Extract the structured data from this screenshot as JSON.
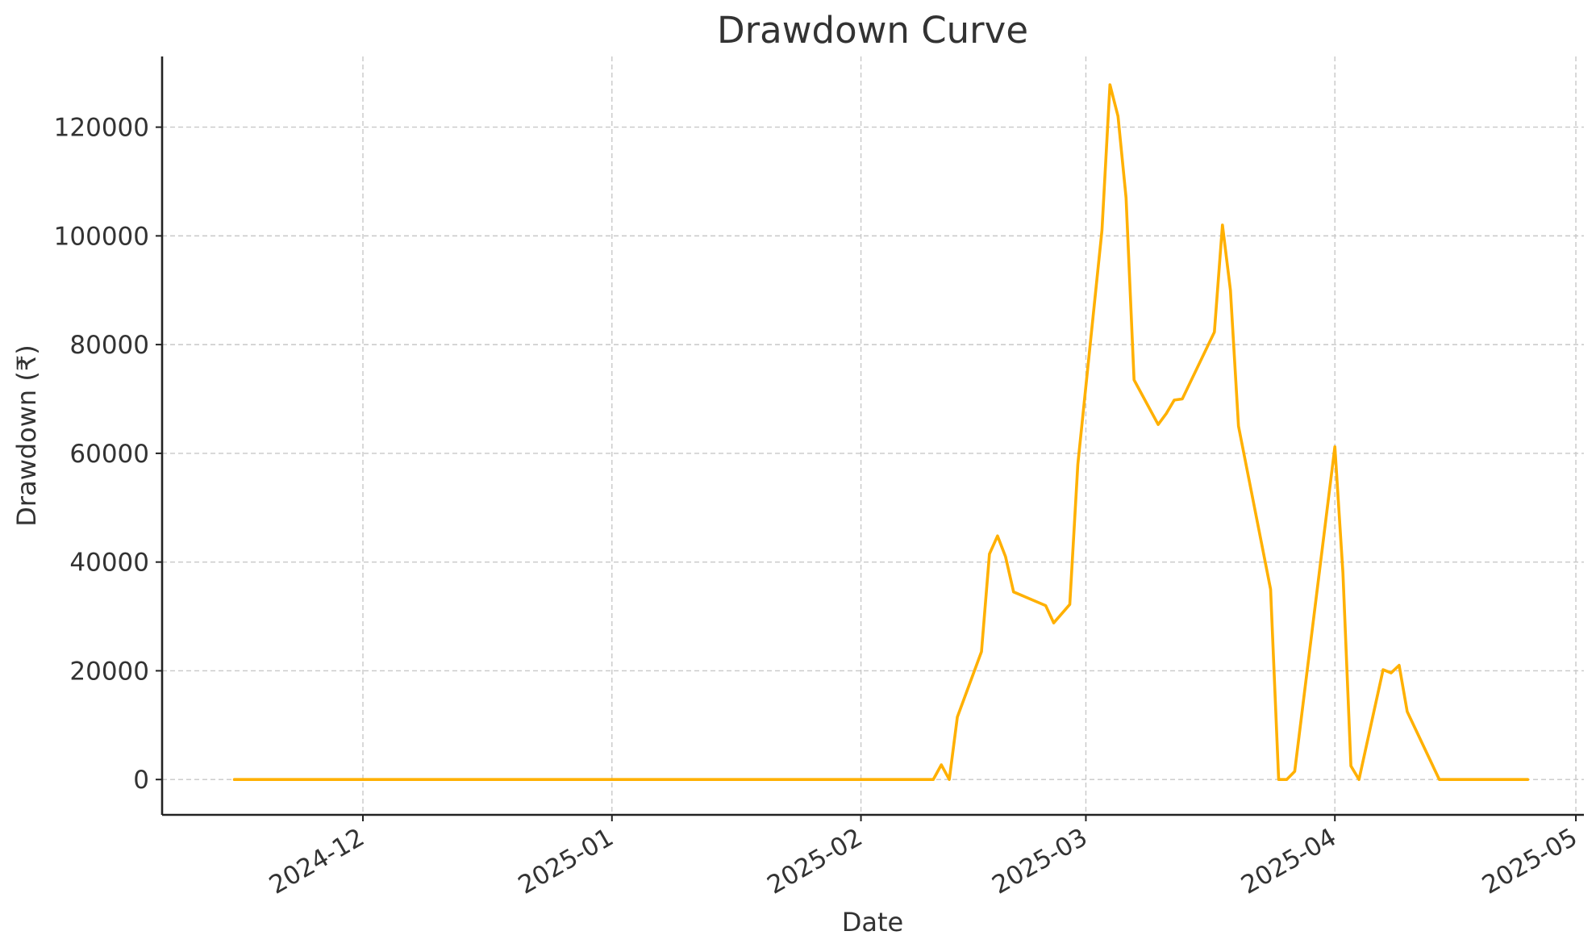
{
  "chart_data": {
    "type": "line",
    "title": "Drawdown Curve",
    "xlabel": "Date",
    "ylabel": "Drawdown (₹)",
    "grid": true,
    "color": "#FFB000",
    "xlim": [
      "2024-11-06",
      "2025-05-02"
    ],
    "ylim": [
      -6500,
      133000
    ],
    "x_ticks": [
      "2024-12-01",
      "2025-01-01",
      "2025-02-01",
      "2025-03-01",
      "2025-04-01",
      "2025-05-01"
    ],
    "x_tick_labels": [
      "2024-12",
      "2025-01",
      "2025-02",
      "2025-03",
      "2025-04",
      "2025-05"
    ],
    "y_ticks": [
      0,
      20000,
      40000,
      60000,
      80000,
      100000,
      120000
    ],
    "y_tick_labels": [
      "0",
      "20000",
      "40000",
      "60000",
      "80000",
      "100000",
      "120000"
    ],
    "series": [
      {
        "x": [
          "2024-11-15",
          "2025-02-10",
          "2025-02-11",
          "2025-02-12",
          "2025-02-13",
          "2025-02-16",
          "2025-02-17",
          "2025-02-18",
          "2025-02-19",
          "2025-02-20",
          "2025-02-24",
          "2025-02-25",
          "2025-02-27",
          "2025-02-28",
          "2025-03-03",
          "2025-03-04",
          "2025-03-05",
          "2025-03-06",
          "2025-03-07",
          "2025-03-10",
          "2025-03-11",
          "2025-03-12",
          "2025-03-13",
          "2025-03-17",
          "2025-03-18",
          "2025-03-19",
          "2025-03-20",
          "2025-03-24",
          "2025-03-25",
          "2025-03-26",
          "2025-03-27",
          "2025-04-01",
          "2025-04-02",
          "2025-04-03",
          "2025-04-04",
          "2025-04-07",
          "2025-04-08",
          "2025-04-09",
          "2025-04-10",
          "2025-04-14",
          "2025-04-25"
        ],
        "y": [
          0,
          0,
          2700,
          0,
          11500,
          23500,
          41500,
          44800,
          41000,
          34500,
          32000,
          28800,
          32200,
          58000,
          101000,
          127800,
          122000,
          107000,
          73500,
          65300,
          67300,
          69800,
          70000,
          82300,
          102000,
          90000,
          65000,
          35000,
          0,
          0,
          1500,
          61200,
          38000,
          2500,
          0,
          20200,
          19600,
          21000,
          12500,
          0,
          0
        ]
      }
    ]
  }
}
